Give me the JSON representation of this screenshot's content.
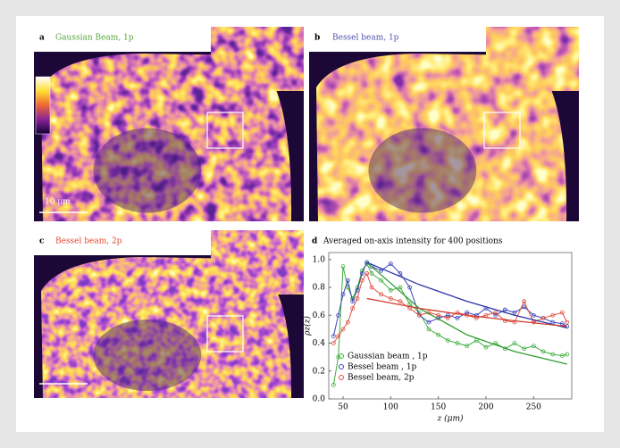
{
  "panels": [
    {
      "letter": "a",
      "title": "Gaussian Beam, 1p",
      "color": "#55a43a",
      "scale_bar": "10 μm"
    },
    {
      "letter": "b",
      "title": "Bessel beam, 1p",
      "color": "#4b4fae"
    },
    {
      "letter": "c",
      "title": "Bessel beam, 2p",
      "color": "#e0452a"
    }
  ],
  "chart_data": {
    "type": "line",
    "letter": "d",
    "title": "Averaged on-axis intensity for 400 positions",
    "x_label": "z (μm)",
    "y_label": "ρz(z)",
    "x": [
      40,
      45,
      50,
      55,
      60,
      65,
      70,
      75,
      80,
      90,
      100,
      110,
      120,
      130,
      140,
      150,
      160,
      170,
      180,
      190,
      200,
      210,
      220,
      230,
      240,
      250,
      260,
      270,
      280,
      285
    ],
    "series": [
      {
        "name": "Gaussian beam , 1p",
        "color": "#3fae3f",
        "values": [
          0.1,
          0.3,
          0.95,
          0.8,
          0.72,
          0.8,
          0.92,
          0.97,
          0.9,
          0.85,
          0.78,
          0.8,
          0.68,
          0.62,
          0.5,
          0.46,
          0.42,
          0.4,
          0.38,
          0.42,
          0.37,
          0.4,
          0.36,
          0.4,
          0.36,
          0.38,
          0.34,
          0.32,
          0.31,
          0.32
        ]
      },
      {
        "name": "Bessel beam , 1p",
        "color": "#3b45b8",
        "values": [
          0.45,
          0.6,
          0.75,
          0.85,
          0.7,
          0.78,
          0.9,
          0.98,
          0.95,
          0.92,
          0.97,
          0.9,
          0.8,
          0.6,
          0.55,
          0.58,
          0.6,
          0.58,
          0.62,
          0.6,
          0.65,
          0.6,
          0.64,
          0.62,
          0.66,
          0.6,
          0.58,
          0.55,
          0.54,
          0.52
        ]
      },
      {
        "name": "Bessel beam, 2p",
        "color": "#e05040",
        "values": [
          0.4,
          0.45,
          0.5,
          0.55,
          0.65,
          0.72,
          0.85,
          0.9,
          0.8,
          0.75,
          0.72,
          0.7,
          0.65,
          0.6,
          0.62,
          0.6,
          0.58,
          0.62,
          0.6,
          0.58,
          0.6,
          0.62,
          0.56,
          0.55,
          0.7,
          0.55,
          0.58,
          0.6,
          0.62,
          0.55
        ]
      }
    ],
    "fits": [
      {
        "color": "#2f9e2f",
        "x": [
          75,
          130,
          180,
          230,
          285
        ],
        "values": [
          0.98,
          0.65,
          0.46,
          0.34,
          0.25
        ]
      },
      {
        "color": "#2a34a8",
        "x": [
          75,
          130,
          180,
          230,
          285
        ],
        "values": [
          0.98,
          0.82,
          0.7,
          0.6,
          0.51
        ]
      },
      {
        "color": "#d03a2a",
        "x": [
          75,
          130,
          180,
          230,
          285
        ],
        "values": [
          0.72,
          0.65,
          0.6,
          0.56,
          0.52
        ]
      }
    ],
    "xlim": [
      35,
      290
    ],
    "ylim": [
      0,
      1.05
    ],
    "xticks": [
      50,
      100,
      150,
      200,
      250
    ],
    "yticks": [
      {
        "value": 0,
        "label": "0.0"
      },
      0.2,
      0.4,
      0.6,
      0.8,
      {
        "value": 1,
        "label": "1.0"
      }
    ],
    "legend": "lower left"
  }
}
